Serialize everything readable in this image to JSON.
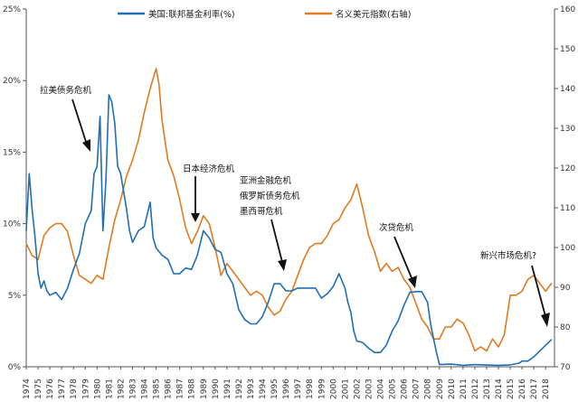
{
  "chart_data": {
    "type": "line",
    "title": "",
    "xlabel": "",
    "ylabel_left": "",
    "ylabel_right": "",
    "x_categories": [
      "1974",
      "1975",
      "1976",
      "1977",
      "1978",
      "1979",
      "1980",
      "1981",
      "1982",
      "1983",
      "1984",
      "1985",
      "1986",
      "1987",
      "1988",
      "1989",
      "1990",
      "1991",
      "1992",
      "1993",
      "1994",
      "1995",
      "1996",
      "1997",
      "1998",
      "1999",
      "2000",
      "2001",
      "2002",
      "2003",
      "2004",
      "2005",
      "2006",
      "2007",
      "2008",
      "2009",
      "2010",
      "2011",
      "2012",
      "2013",
      "2014",
      "2015",
      "2016",
      "2017",
      "2018"
    ],
    "xlim": [
      1974,
      2018.75
    ],
    "y_left": {
      "ylim": [
        0,
        25
      ],
      "ticks": [
        "0%",
        "5%",
        "10%",
        "15%",
        "20%",
        "25%"
      ],
      "tick_values": [
        0,
        5,
        10,
        15,
        20,
        25
      ]
    },
    "y_right": {
      "ylim": [
        70,
        160
      ],
      "ticks": [
        "70",
        "80",
        "90",
        "100",
        "110",
        "120",
        "130",
        "140",
        "150",
        "160"
      ],
      "tick_values": [
        70,
        80,
        90,
        100,
        110,
        120,
        130,
        140,
        150,
        160
      ]
    },
    "grid": false,
    "legend_position": "top-center",
    "series": [
      {
        "name": "美国:联邦基金利率(%)",
        "axis": "left",
        "color": "#1f6fb5",
        "x": [
          1974.0,
          1974.25,
          1974.5,
          1974.75,
          1975.0,
          1975.25,
          1975.5,
          1975.75,
          1976.0,
          1976.5,
          1977.0,
          1977.5,
          1978.0,
          1978.5,
          1979.0,
          1979.5,
          1979.75,
          1980.0,
          1980.25,
          1980.5,
          1980.75,
          1981.0,
          1981.25,
          1981.5,
          1981.75,
          1982.0,
          1982.5,
          1982.75,
          1983.0,
          1983.5,
          1984.0,
          1984.5,
          1984.75,
          1985.0,
          1985.5,
          1986.0,
          1986.5,
          1987.0,
          1987.5,
          1988.0,
          1988.5,
          1989.0,
          1989.5,
          1990.0,
          1990.5,
          1991.0,
          1991.5,
          1992.0,
          1992.5,
          1993.0,
          1993.5,
          1994.0,
          1994.5,
          1995.0,
          1995.5,
          1996.0,
          1996.5,
          1997.0,
          1997.5,
          1998.0,
          1998.5,
          1999.0,
          1999.5,
          2000.0,
          2000.5,
          2001.0,
          2001.25,
          2001.5,
          2001.75,
          2002.0,
          2002.5,
          2003.0,
          2003.5,
          2004.0,
          2004.5,
          2005.0,
          2005.5,
          2006.0,
          2006.5,
          2007.0,
          2007.5,
          2008.0,
          2008.25,
          2008.5,
          2008.75,
          2009.0,
          2010.0,
          2011.0,
          2012.0,
          2013.0,
          2014.0,
          2015.0,
          2015.75,
          2016.0,
          2016.5,
          2017.0,
          2017.5,
          2018.0,
          2018.5
        ],
        "values": [
          9.5,
          13.5,
          11.0,
          9.0,
          6.5,
          5.5,
          6.0,
          5.3,
          5.0,
          5.2,
          4.7,
          5.5,
          6.8,
          7.9,
          10.0,
          10.9,
          13.5,
          14.0,
          17.5,
          9.5,
          13.0,
          19.0,
          18.5,
          17.0,
          14.0,
          13.5,
          11.0,
          9.5,
          8.7,
          9.5,
          9.8,
          11.5,
          9.0,
          8.3,
          7.8,
          7.5,
          6.5,
          6.5,
          6.9,
          6.8,
          7.8,
          9.5,
          9.0,
          8.2,
          8.0,
          6.5,
          5.8,
          4.0,
          3.3,
          3.0,
          3.0,
          3.5,
          4.5,
          5.8,
          5.8,
          5.3,
          5.3,
          5.5,
          5.5,
          5.5,
          5.5,
          4.8,
          5.1,
          5.6,
          6.5,
          5.5,
          4.5,
          3.8,
          2.5,
          1.8,
          1.7,
          1.3,
          1.0,
          1.0,
          1.5,
          2.5,
          3.2,
          4.3,
          5.2,
          5.25,
          5.25,
          4.5,
          3.0,
          2.0,
          1.0,
          0.15,
          0.18,
          0.1,
          0.15,
          0.12,
          0.1,
          0.13,
          0.25,
          0.4,
          0.4,
          0.7,
          1.1,
          1.5,
          1.9
        ]
      },
      {
        "name": "名义美元指数(右轴)",
        "axis": "right",
        "color": "#e07b22",
        "x": [
          1974.0,
          1974.5,
          1975.0,
          1975.5,
          1976.0,
          1976.5,
          1977.0,
          1977.5,
          1978.0,
          1978.5,
          1979.0,
          1979.5,
          1980.0,
          1980.5,
          1981.0,
          1981.5,
          1982.0,
          1982.5,
          1983.0,
          1983.5,
          1984.0,
          1984.5,
          1985.0,
          1985.25,
          1985.5,
          1986.0,
          1986.5,
          1987.0,
          1987.5,
          1988.0,
          1988.5,
          1989.0,
          1989.5,
          1990.0,
          1990.5,
          1991.0,
          1991.5,
          1992.0,
          1992.5,
          1993.0,
          1993.5,
          1994.0,
          1994.5,
          1995.0,
          1995.5,
          1996.0,
          1996.5,
          1997.0,
          1997.5,
          1998.0,
          1998.5,
          1999.0,
          1999.5,
          2000.0,
          2000.5,
          2001.0,
          2001.5,
          2002.0,
          2002.5,
          2003.0,
          2003.5,
          2004.0,
          2004.5,
          2005.0,
          2005.5,
          2006.0,
          2006.5,
          2007.0,
          2007.5,
          2008.0,
          2008.5,
          2009.0,
          2009.5,
          2010.0,
          2010.5,
          2011.0,
          2011.5,
          2012.0,
          2012.5,
          2013.0,
          2013.5,
          2014.0,
          2014.5,
          2015.0,
          2015.5,
          2016.0,
          2016.5,
          2017.0,
          2017.5,
          2018.0,
          2018.5
        ],
        "values": [
          101,
          98,
          97,
          103,
          105,
          106,
          106,
          104,
          98,
          93,
          92,
          91,
          93,
          92,
          100,
          107,
          112,
          118,
          122,
          127,
          134,
          140,
          145,
          141,
          132,
          122,
          118,
          112,
          105,
          101,
          104,
          108,
          106,
          100,
          93,
          96,
          94,
          92,
          90,
          88,
          89,
          88,
          85,
          83,
          84,
          87,
          89,
          93,
          97,
          100,
          101,
          101,
          103,
          106,
          107,
          110,
          112,
          116,
          110,
          103,
          99,
          94,
          96,
          94,
          95,
          92,
          90,
          86,
          82,
          80,
          77,
          77,
          80,
          80,
          82,
          81,
          78,
          74,
          75,
          74,
          77,
          75,
          78,
          88,
          88,
          89,
          92,
          93,
          91,
          89,
          91
        ]
      }
    ],
    "annotations": [
      {
        "text": "拉美债务危机",
        "x": 1979.8,
        "y_pct": 13.5
      },
      {
        "text": "日本经济危机",
        "x": 1987.8,
        "y_pct": 9.3
      },
      {
        "text": "亚洲金融危机",
        "x": 1995.9,
        "y_pct": 6.2
      },
      {
        "text": "俄罗斯债务危机",
        "x": null,
        "y_pct": null
      },
      {
        "text": "墨西哥危机",
        "x": null,
        "y_pct": null
      },
      {
        "text": "次贷危机",
        "x": 2007.2,
        "y_pct": 5.5
      },
      {
        "text": "新兴市场危机?",
        "x": 2018.5,
        "y_pct": 2.2
      }
    ]
  }
}
